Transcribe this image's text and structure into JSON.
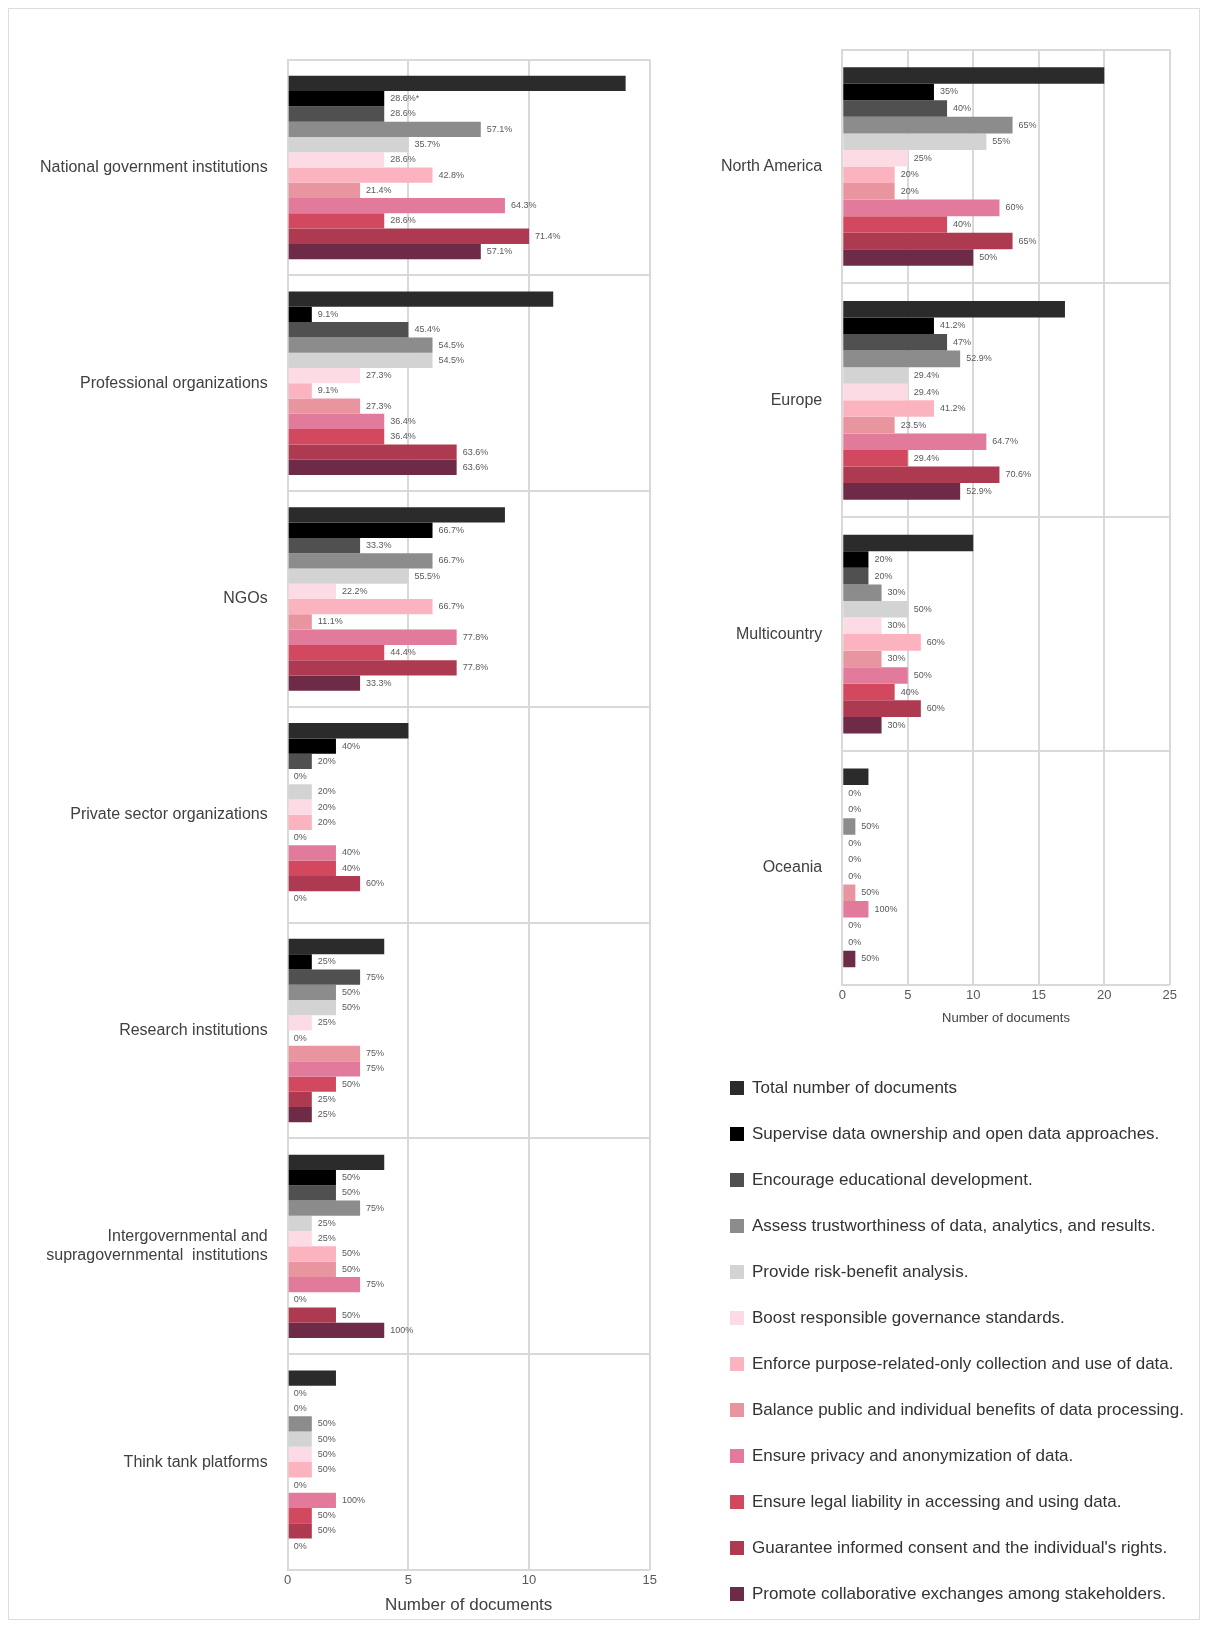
{
  "chart_data": [
    {
      "type": "bar",
      "orientation": "horizontal",
      "categories": [
        "National government institutions",
        "Professional organizations",
        "NGOs",
        "Private sector organizations",
        "Research institutions",
        "Intergovernmental and supragovernmental  institutions",
        "Think tank platforms"
      ],
      "xlabel": "Number of documents",
      "xlim": [
        0,
        15
      ],
      "xticks": [
        0,
        5,
        10,
        15
      ],
      "grid": true,
      "legend": false,
      "series": [
        {
          "color": "#2b2b2b",
          "values": [
            14,
            11,
            9,
            5,
            4,
            4,
            2
          ]
        },
        {
          "color": "#000000",
          "values": [
            4,
            1,
            6,
            2,
            1,
            2,
            0
          ]
        },
        {
          "color": "#505050",
          "values": [
            4,
            5,
            3,
            1,
            3,
            2,
            0
          ]
        },
        {
          "color": "#8c8c8c",
          "values": [
            8,
            6,
            6,
            0,
            2,
            3,
            1
          ]
        },
        {
          "color": "#d3d3d3",
          "values": [
            5,
            6,
            5,
            1,
            2,
            1,
            1
          ]
        },
        {
          "color": "#fddbe5",
          "values": [
            4,
            3,
            2,
            1,
            1,
            1,
            1
          ]
        },
        {
          "color": "#fbb3c0",
          "values": [
            6,
            1,
            6,
            1,
            0,
            2,
            1
          ]
        },
        {
          "color": "#e8959f",
          "values": [
            3,
            3,
            1,
            0,
            3,
            2,
            0
          ]
        },
        {
          "color": "#e27b9b",
          "values": [
            9,
            4,
            7,
            2,
            3,
            3,
            2
          ]
        },
        {
          "color": "#d2485f",
          "values": [
            4,
            4,
            4,
            2,
            2,
            0,
            1
          ]
        },
        {
          "color": "#ad3a50",
          "values": [
            10,
            7,
            7,
            3,
            1,
            2,
            1
          ]
        },
        {
          "color": "#6d2b47",
          "values": [
            8,
            7,
            3,
            0,
            1,
            4,
            0
          ]
        }
      ],
      "annotations": [
        "28.6%*",
        "28.6%",
        "57.1%",
        "35.7%",
        "28.6%",
        "42.8%",
        "21.4%",
        "64.3%",
        "28.6%",
        "71.4%",
        "57.1%",
        "9.1%",
        "45.4%",
        "54.5%",
        "54.5%",
        "27.3%",
        "9.1%",
        "27.3%",
        "36.4%",
        "36.4%",
        "63.6%",
        "63.6%",
        "66.7%",
        "33.3%",
        "66.7%",
        "55.5%",
        "22.2%",
        "66.7%",
        "11.1%",
        "77.8%",
        "44.4%",
        "77.8%",
        "33.3%",
        "40%",
        "20%",
        "0%",
        "20%",
        "20%",
        "20%",
        "0%",
        "40%",
        "40%",
        "60%",
        "0%",
        "25%",
        "75%",
        "50%",
        "50%",
        "25%",
        "0%",
        "75%",
        "75%",
        "50%",
        "25%",
        "25%",
        "50%",
        "50%",
        "75%",
        "25%",
        "25%",
        "50%",
        "50%",
        "75%",
        "0%",
        "50%",
        "100%",
        "0%",
        "0%",
        "50%",
        "50%",
        "50%",
        "50%",
        "0%",
        "100%",
        "50%",
        "50%",
        "0%"
      ]
    },
    {
      "type": "bar",
      "orientation": "horizontal",
      "categories": [
        "North America",
        "Europe",
        "Multicountry",
        "Oceania"
      ],
      "xlabel": "Number of documents",
      "xlim": [
        0,
        25
      ],
      "xticks": [
        0,
        5,
        10,
        15,
        20,
        25
      ],
      "grid": true,
      "legend": "bottom",
      "series": [
        {
          "name": "Total number of documents",
          "color": "#2b2b2b",
          "values": [
            20,
            17,
            10,
            2
          ]
        },
        {
          "name": "Supervise data ownership and open data approaches.",
          "color": "#000000",
          "values": [
            7,
            7,
            2,
            0
          ]
        },
        {
          "name": "Encourage educational development.",
          "color": "#505050",
          "values": [
            8,
            8,
            2,
            0
          ]
        },
        {
          "name": "Assess trustworthiness of data, analytics, and results.",
          "color": "#8c8c8c",
          "values": [
            13,
            9,
            3,
            1
          ]
        },
        {
          "name": "Provide risk-benefit analysis.",
          "color": "#d3d3d3",
          "values": [
            11,
            5,
            5,
            0
          ]
        },
        {
          "name": "Boost responsible governance standards.",
          "color": "#fddbe5",
          "values": [
            5,
            5,
            3,
            0
          ]
        },
        {
          "name": "Enforce purpose-related-only collection and use of data.",
          "color": "#fbb3c0",
          "values": [
            4,
            7,
            6,
            0
          ]
        },
        {
          "name": "Balance public and individual benefits of data processing.",
          "color": "#e8959f",
          "values": [
            4,
            4,
            3,
            1
          ]
        },
        {
          "name": "Ensure privacy and anonymization of data.",
          "color": "#e27b9b",
          "values": [
            12,
            11,
            5,
            2
          ]
        },
        {
          "name": "Ensure legal liability in accessing and using data.",
          "color": "#d2485f",
          "values": [
            8,
            5,
            4,
            0
          ]
        },
        {
          "name": "Guarantee informed consent and the individual's rights.",
          "color": "#ad3a50",
          "values": [
            13,
            12,
            6,
            0
          ]
        },
        {
          "name": "Promote collaborative exchanges among stakeholders.",
          "color": "#6d2b47",
          "values": [
            10,
            9,
            3,
            1
          ]
        }
      ],
      "annotations": [
        "35%",
        "40%",
        "65%",
        "55%",
        "25%",
        "20%",
        "20%",
        "60%",
        "40%",
        "65%",
        "50%",
        "41.2%",
        "47%",
        "52.9%",
        "29.4%",
        "29.4%",
        "41.2%",
        "23.5%",
        "64.7%",
        "29.4%",
        "70.6%",
        "52.9%",
        "20%",
        "20%",
        "30%",
        "50%",
        "30%",
        "60%",
        "30%",
        "50%",
        "40%",
        "60%",
        "30%",
        "0%",
        "0%",
        "50%",
        "0%",
        "0%",
        "0%",
        "50%",
        "100%",
        "0%",
        "0%",
        "50%"
      ]
    }
  ]
}
